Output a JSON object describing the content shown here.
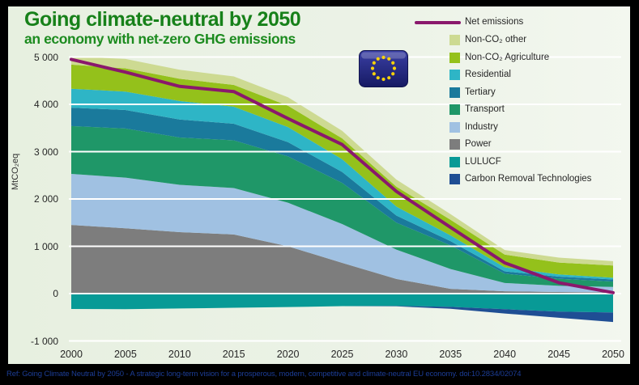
{
  "title": {
    "line1": "Going climate-neutral by 2050",
    "line2": "an economy with net-zero GHG emissions"
  },
  "footer": {
    "text": "Ref: Going Climate Neutral by 2050 - A strategic long-term vision for a prosperous, modern, competitive and climate-neutral EU economy. doi:10.2834/02074"
  },
  "flag": {
    "name": "eu-flag",
    "star_count": 12,
    "field_color": "#23288c",
    "field_dark": "#161a63",
    "star_color": "#f8d20a"
  },
  "colors": {
    "slide_background": "#e9f1e3",
    "gridline": "#ffffff",
    "tick_text": "#262626",
    "title_green": "#17811a",
    "footer_blue": "#1c3d96"
  },
  "chart_data": {
    "type": "area",
    "subtype": "stacked-area-with-net-line",
    "ylabel": "MtCO₂eq",
    "ylim": [
      -1000,
      5000
    ],
    "grid": "horizontal-white",
    "legend_position": "upper-right",
    "x": [
      2000,
      2005,
      2010,
      2015,
      2020,
      2025,
      2030,
      2035,
      2040,
      2045,
      2050
    ],
    "x_tick_labels": [
      "2000",
      "2005",
      "2010",
      "2015",
      "2020",
      "2025",
      "2030",
      "2035",
      "2040",
      "2045",
      "2050"
    ],
    "y_ticks": [
      {
        "value": 5000,
        "label": "5 000"
      },
      {
        "value": 4000,
        "label": "4 000"
      },
      {
        "value": 3000,
        "label": "3 000"
      },
      {
        "value": 2000,
        "label": "2 000"
      },
      {
        "value": 1000,
        "label": "1 000"
      },
      {
        "value": 0,
        "label": "0"
      },
      {
        "value": -1000,
        "label": "-1 000"
      }
    ],
    "series": [
      {
        "name": "Power",
        "stack": "positive",
        "color": "#7d7d7d",
        "values": [
          1450,
          1380,
          1300,
          1250,
          1000,
          650,
          310,
          100,
          50,
          35,
          25
        ]
      },
      {
        "name": "Industry",
        "stack": "positive",
        "color": "#a0c1e2",
        "values": [
          1080,
          1070,
          1000,
          980,
          920,
          820,
          620,
          420,
          175,
          130,
          115
        ]
      },
      {
        "name": "Transport",
        "stack": "positive",
        "color": "#1f9768",
        "values": [
          1010,
          1040,
          1000,
          1010,
          980,
          870,
          570,
          500,
          195,
          150,
          115
        ]
      },
      {
        "name": "Tertiary",
        "stack": "positive",
        "color": "#1a7a9c",
        "values": [
          390,
          390,
          380,
          350,
          300,
          230,
          150,
          90,
          50,
          45,
          45
        ]
      },
      {
        "name": "Residential",
        "stack": "positive",
        "color": "#2eb5c6",
        "values": [
          400,
          390,
          390,
          360,
          320,
          270,
          190,
          120,
          85,
          45,
          35
        ]
      },
      {
        "name": "Non-CO₂ Agriculture",
        "stack": "positive",
        "color": "#94c11b",
        "values": [
          510,
          490,
          470,
          460,
          450,
          440,
          420,
          330,
          270,
          250,
          260
        ]
      },
      {
        "name": "Non-CO₂ other",
        "stack": "positive",
        "color": "#cdda92",
        "values": [
          170,
          200,
          190,
          180,
          180,
          160,
          150,
          120,
          95,
          105,
          90
        ]
      },
      {
        "name": "LULUCF",
        "stack": "negative",
        "color": "#089a96",
        "values": [
          -325,
          -330,
          -315,
          -300,
          -285,
          -265,
          -260,
          -280,
          -330,
          -380,
          -400
        ]
      },
      {
        "name": "Carbon Removal Technologies",
        "stack": "negative",
        "color": "#1f4e94",
        "values": [
          0,
          0,
          0,
          0,
          0,
          0,
          -10,
          -40,
          -90,
          -130,
          -200
        ]
      }
    ],
    "line": {
      "name": "Net emissions",
      "color": "#8a186c",
      "values": [
        4950,
        4680,
        4380,
        4270,
        3700,
        3150,
        2160,
        1400,
        650,
        230,
        20
      ]
    }
  },
  "legend": {
    "items": [
      {
        "label": "Net emissions",
        "color": "#8a186c",
        "swatch": "line"
      },
      {
        "label": "Non-CO₂ other",
        "color": "#cdda92",
        "swatch": "rect"
      },
      {
        "label": "Non-CO₂ Agriculture",
        "color": "#94c11b",
        "swatch": "rect"
      },
      {
        "label": "Residential",
        "color": "#2eb5c6",
        "swatch": "rect"
      },
      {
        "label": "Tertiary",
        "color": "#1a7a9c",
        "swatch": "rect"
      },
      {
        "label": "Transport",
        "color": "#1f9768",
        "swatch": "rect"
      },
      {
        "label": "Industry",
        "color": "#a0c1e2",
        "swatch": "rect"
      },
      {
        "label": "Power",
        "color": "#7d7d7d",
        "swatch": "rect"
      },
      {
        "label": "LULUCF",
        "color": "#089a96",
        "swatch": "rect"
      },
      {
        "label": "Carbon Removal Technologies",
        "color": "#1f4e94",
        "swatch": "rect"
      }
    ]
  }
}
